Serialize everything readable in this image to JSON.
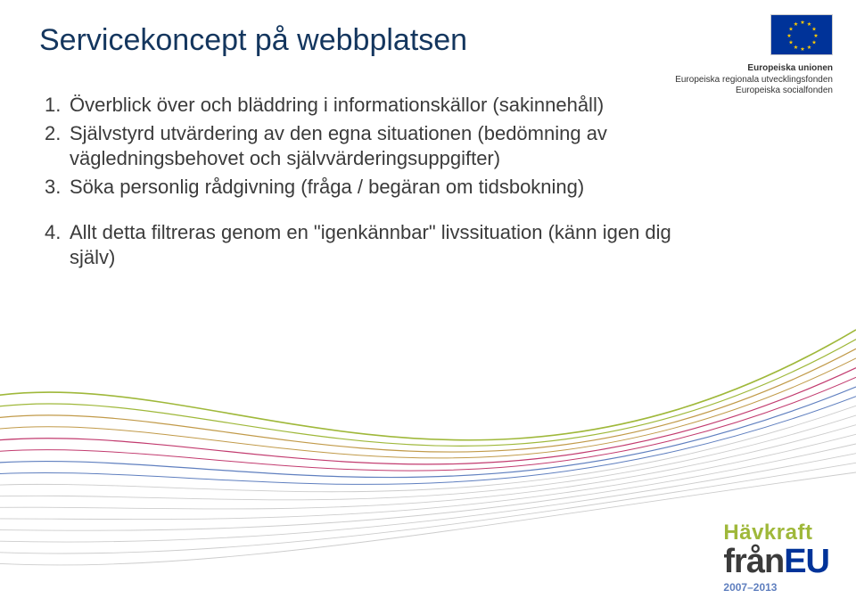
{
  "title": {
    "text": "Servicekoncept på webbplatsen",
    "color": "#14365e",
    "fontsize": 34
  },
  "eu": {
    "flag": {
      "bg": "#003399",
      "star_color": "#ffcc00"
    },
    "lines": [
      "Europeiska unionen",
      "Europeiska regionala utvecklingsfonden",
      "Europeiska socialfonden"
    ],
    "text_color": "#333333"
  },
  "body": {
    "color": "#3b3b3b",
    "fontsize": 22,
    "items": [
      {
        "n": "1.",
        "text": "Överblick över och bläddring i informationskällor (sakinnehåll)"
      },
      {
        "n": "2.",
        "text": "Självstyrd utvärdering av den egna situationen (bedömning av vägledningsbehovet och självvärderingsuppgifter)"
      },
      {
        "n": "3.",
        "text": "Söka personlig rådgivning (fråga / begäran om tidsbokning)"
      }
    ],
    "spacer_after": 2,
    "item4": {
      "n": "4.",
      "text": "Allt detta filtreras genom en \"igenkännbar\" livssituation (känn igen dig själv)"
    }
  },
  "waves": {
    "background": "#ffffff",
    "lines": [
      {
        "color": "#9fb83a",
        "width": 1.6
      },
      {
        "color": "#9fb83a",
        "width": 1.2
      },
      {
        "color": "#c19a49",
        "width": 1.2
      },
      {
        "color": "#c19a49",
        "width": 1.0
      },
      {
        "color": "#c23b6f",
        "width": 1.2
      },
      {
        "color": "#c23b6f",
        "width": 1.0
      },
      {
        "color": "#5f7fbf",
        "width": 1.2
      },
      {
        "color": "#5f7fbf",
        "width": 1.0
      },
      {
        "color": "#cccccc",
        "width": 0.9
      },
      {
        "color": "#cccccc",
        "width": 0.9
      },
      {
        "color": "#cccccc",
        "width": 0.9
      },
      {
        "color": "#cccccc",
        "width": 0.9
      },
      {
        "color": "#cccccc",
        "width": 0.9
      },
      {
        "color": "#cccccc",
        "width": 0.9
      },
      {
        "color": "#cccccc",
        "width": 0.9
      },
      {
        "color": "#cccccc",
        "width": 0.9
      }
    ]
  },
  "logo": {
    "hav": {
      "text": "Hävkraft",
      "color": "#9fb83a"
    },
    "fran": {
      "text": "från",
      "color": "#3b3b3b"
    },
    "eu": {
      "text": "EU",
      "color": "#003399"
    },
    "years": {
      "text": "2007–2013",
      "color": "#5f7fbf"
    }
  }
}
